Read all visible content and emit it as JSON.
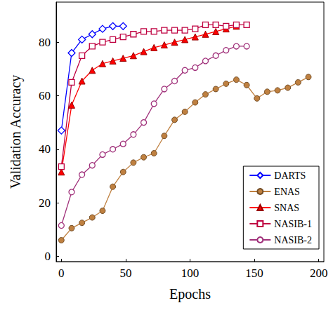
{
  "chart_data": {
    "type": "line",
    "x_label": "Epochs",
    "y_label": "Validation Accuracy",
    "xlim": [
      -4,
      204
    ],
    "xticks": [
      0,
      50,
      100,
      150,
      200
    ],
    "ylim": [
      -2,
      95
    ],
    "yticks": [
      0,
      20,
      40,
      60,
      80
    ],
    "grid": false,
    "legend": "lower right",
    "series": [
      {
        "name": "DARTS",
        "color": "#0000ff",
        "marker": "open-diamond",
        "line_style": "solid",
        "x": [
          0,
          8,
          16,
          24,
          32,
          40,
          48
        ],
        "values": [
          47,
          76,
          81,
          83,
          85,
          86,
          86
        ]
      },
      {
        "name": "ENAS",
        "color": "#bf8040",
        "marker": "filled-circle",
        "line_style": "solid",
        "x": [
          0,
          8,
          16,
          24,
          32,
          40,
          48,
          56,
          64,
          72,
          80,
          88,
          96,
          104,
          112,
          120,
          128,
          136,
          144,
          152,
          160,
          168,
          176,
          184,
          192
        ],
        "values": [
          6,
          10.5,
          12.5,
          14.5,
          17,
          26,
          31.5,
          35,
          37,
          38.5,
          45,
          51,
          54,
          57.5,
          60.5,
          62.5,
          64.5,
          66,
          64,
          59,
          61.5,
          62,
          63,
          65,
          67
        ]
      },
      {
        "name": "SNAS",
        "color": "#ff0000",
        "marker": "filled-triangle",
        "line_style": "solid",
        "x": [
          0,
          8,
          16,
          24,
          32,
          40,
          48,
          56,
          64,
          72,
          80,
          88,
          96,
          104,
          112,
          120,
          128,
          136
        ],
        "values": [
          31.5,
          56.5,
          65.5,
          69.5,
          72,
          73,
          74,
          75,
          76.5,
          78,
          79,
          80,
          81,
          82,
          83,
          84,
          85,
          86
        ]
      },
      {
        "name": "NASIB-1",
        "color": "#bf0040",
        "marker": "open-square",
        "line_style": "solid",
        "x": [
          0,
          8,
          16,
          24,
          32,
          40,
          48,
          56,
          64,
          72,
          80,
          88,
          96,
          104,
          112,
          120,
          128,
          136,
          144
        ],
        "values": [
          33.5,
          65,
          75,
          78.5,
          80,
          81,
          82,
          83,
          84,
          84,
          84.5,
          84.5,
          84.5,
          85,
          86.5,
          86.5,
          86,
          86.5,
          86.5
        ]
      },
      {
        "name": "NASIB-2",
        "color": "#a0307a",
        "marker": "open-circle",
        "line_style": "solid",
        "x": [
          0,
          8,
          16,
          24,
          32,
          40,
          48,
          56,
          64,
          72,
          80,
          88,
          96,
          104,
          112,
          120,
          128,
          136,
          144
        ],
        "values": [
          11.5,
          24,
          30.5,
          34,
          38,
          40,
          42,
          45.5,
          50,
          57,
          62.5,
          65.5,
          69.5,
          70.5,
          73,
          75,
          77,
          78.5,
          78.5
        ]
      }
    ]
  }
}
